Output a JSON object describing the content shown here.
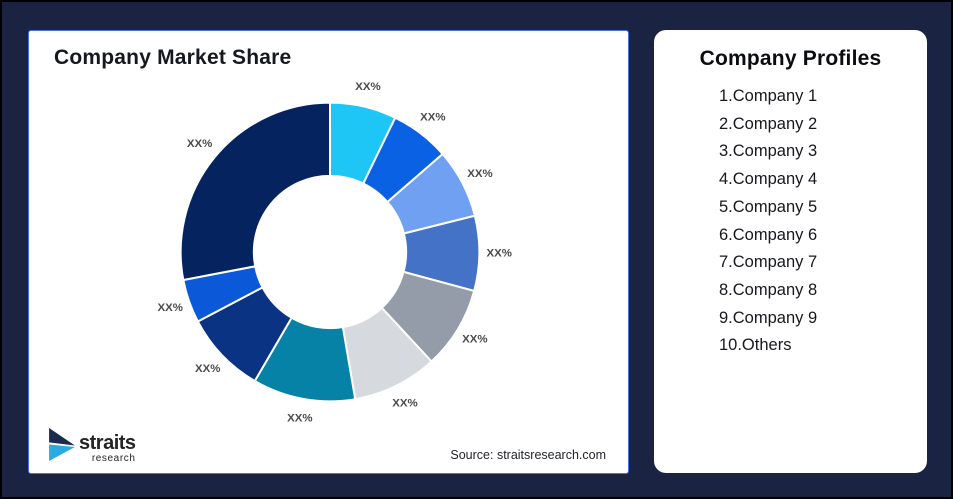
{
  "page": {
    "background_color": "#1A2442",
    "frame_border_color": "#000000"
  },
  "left_card": {
    "title": "Company Market Share",
    "source_note": "Source: straitsresearch.com",
    "border_color": "#4570E6",
    "logo": {
      "brand": "straits",
      "subtext": "research",
      "mark_navy": "#1B2B4D",
      "mark_cyan": "#2BAAE2"
    }
  },
  "chart_data": {
    "type": "pie",
    "variant": "donut",
    "title": "Company Market Share",
    "inner_radius_ratio": 0.51,
    "start_angle_deg": 0,
    "direction": "clockwise",
    "legend": "none",
    "label_color": "#4A4A4A",
    "stroke_color": "#FFFFFF",
    "segments": [
      {
        "label": "XX%",
        "value_pct": 7.2,
        "color": "#1EC6F5"
      },
      {
        "label": "XX%",
        "value_pct": 6.4,
        "color": "#0B61E4"
      },
      {
        "label": "XX%",
        "value_pct": 7.5,
        "color": "#6FA0F2"
      },
      {
        "label": "XX%",
        "value_pct": 8.1,
        "color": "#4472C6"
      },
      {
        "label": "XX%",
        "value_pct": 8.9,
        "color": "#959CA9"
      },
      {
        "label": "XX%",
        "value_pct": 9.2,
        "color": "#D6D9DE"
      },
      {
        "label": "XX%",
        "value_pct": 11.1,
        "color": "#0582A6"
      },
      {
        "label": "XX%",
        "value_pct": 8.9,
        "color": "#0A3384"
      },
      {
        "label": "XX%",
        "value_pct": 4.7,
        "color": "#0B59D9"
      },
      {
        "label": "XX%",
        "value_pct": 28.0,
        "color": "#05245F"
      }
    ]
  },
  "right_card": {
    "title": "Company Profiles",
    "items": [
      "1.Company 1",
      "2.Company 2",
      "3.Company 3",
      "4.Company 4",
      "5.Company 5",
      "6.Company 6",
      "7.Company 7",
      "8.Company 8",
      "9.Company 9",
      "10.Others"
    ]
  }
}
